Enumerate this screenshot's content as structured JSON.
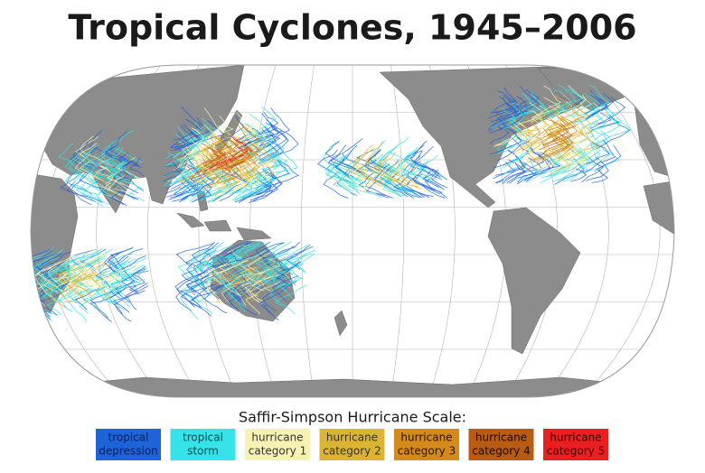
{
  "title": "Tropical Cyclones, 1945–2006",
  "legend": {
    "title": "Saffir-Simpson Hurricane Scale:",
    "items": [
      {
        "line1": "tropical",
        "line2": "depression",
        "color": "#1f63d8",
        "text_color": "#0a1f5a"
      },
      {
        "line1": "tropical",
        "line2": "storm",
        "color": "#35e3e8",
        "text_color": "#0b4a50"
      },
      {
        "line1": "hurricane",
        "line2": "category 1",
        "color": "#f6f2b4",
        "text_color": "#333333"
      },
      {
        "line1": "hurricane",
        "line2": "category 2",
        "color": "#dcb434",
        "text_color": "#333333"
      },
      {
        "line1": "hurricane",
        "line2": "category 3",
        "color": "#d48b1c",
        "text_color": "#2a1400"
      },
      {
        "line1": "hurricane",
        "line2": "category 4",
        "color": "#b95b12",
        "text_color": "#1a0800"
      },
      {
        "line1": "hurricane",
        "line2": "category 5",
        "color": "#ea2020",
        "text_color": "#3a0000"
      }
    ]
  }
}
